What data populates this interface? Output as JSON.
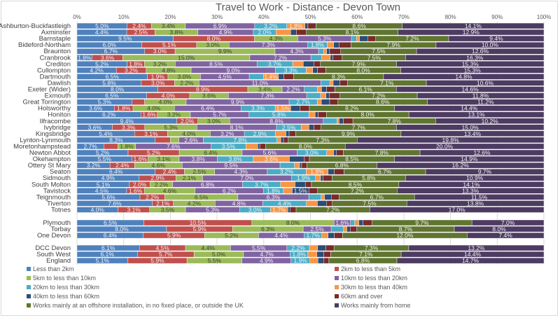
{
  "chart_data": {
    "type": "bar",
    "orientation": "horizontal",
    "stacked": "100%",
    "title": "Travel to Work - Distance - Devon Town",
    "xlabel": "",
    "ylabel": "",
    "xlim": [
      0,
      100
    ],
    "x_ticks": [
      "0%",
      "10%",
      "20%",
      "30%",
      "40%",
      "50%",
      "60%",
      "70%",
      "80%",
      "90%",
      "100%"
    ],
    "grid": true,
    "legend_position": "bottom",
    "series": [
      {
        "name": "Less than 2km",
        "color": "#4f81bd"
      },
      {
        "name": "2km to less than 5km",
        "color": "#c0504d"
      },
      {
        "name": "5km to less than 10km",
        "color": "#9bbb59"
      },
      {
        "name": "10km to less than 20km",
        "color": "#8064a2"
      },
      {
        "name": "20km to less than 30km",
        "color": "#4bacc6"
      },
      {
        "name": "30km to less than 40km",
        "color": "#f79646"
      },
      {
        "name": "40km to less than 60km",
        "color": "#2c4d75"
      },
      {
        "name": "60km and over",
        "color": "#772c2a"
      },
      {
        "name": "Works mainly at an offshore installation, in no fixed place, or outside the UK",
        "color": "#5f7530"
      },
      {
        "name": "Works mainly from home",
        "color": "#4d3b62"
      }
    ],
    "groups": [
      {
        "rows": [
          {
            "category": "Ashburton-Buckfastleigh",
            "values": [
              5.0,
              2.4,
              3.4,
              6.9,
              3.2,
              1.8,
              0.3,
              0.8,
              8.6,
              14.1
            ]
          },
          {
            "category": "Axminster",
            "values": [
              4.4,
              2.5,
              3.8,
              4.9,
              2.0,
              1.3,
              0.5,
              0.9,
              8.1,
              12.9
            ]
          },
          {
            "category": "Barnstaple",
            "values": [
              9.5,
              8.0,
              4.3,
              5.3,
              0.5,
              0.3,
              0.8,
              0.8,
              7.2,
              9.4
            ]
          },
          {
            "category": "Bideford-Northam",
            "values": [
              6.0,
              5.1,
              3.0,
              7.3,
              1.8,
              0.6,
              0.5,
              1.1,
              7.9,
              10.0
            ]
          },
          {
            "category": "Braunton",
            "values": [
              6.7,
              3.0,
              9.9,
              4.3,
              0.5,
              0.3,
              0.3,
              1.1,
              7.5,
              12.6
            ]
          },
          {
            "category": "Cranbrook",
            "values": [
              1.8,
              3.6,
              15.0,
              7.2,
              1.3,
              1.0,
              0.3,
              1.1,
              7.5,
              16.3
            ]
          },
          {
            "category": "Crediton",
            "values": [
              5.2,
              1.8,
              3.2,
              8.5,
              3.7,
              1.1,
              1.1,
              0.7,
              7.9,
              15.3
            ]
          },
          {
            "category": "Cullompton",
            "values": [
              4.2,
              3.2,
              4.8,
              9.0,
              3.3,
              0.7,
              0.5,
              0.9,
              8.0,
              15.3
            ]
          },
          {
            "category": "Dartmouth",
            "values": [
              6.5,
              1.9,
              3.0,
              4.5,
              1.3,
              1.4,
              0.5,
              0.9,
              8.3,
              14.8
            ]
          },
          {
            "category": "Dawlish",
            "values": [
              5.8,
              3.0,
              2.2,
              11.0,
              0.8,
              0.3,
              0.6,
              0.7,
              7.1,
              10.6
            ]
          },
          {
            "category": "Exeter (Wider)",
            "values": [
              8.0,
              8.9,
              3.4,
              2.2,
              1.3,
              0.4,
              0.5,
              0.8,
              6.1,
              14.6
            ]
          },
          {
            "category": "Exmouth",
            "values": [
              6.5,
              4.0,
              3.6,
              7.3,
              1.3,
              0.5,
              0.3,
              1.0,
              7.2,
              11.8
            ]
          },
          {
            "category": "Great Torrington",
            "values": [
              5.3,
              1.2,
              4.0,
              9.9,
              2.7,
              0.4,
              0.8,
              0.8,
              8.6,
              11.2
            ]
          },
          {
            "category": "Holsworthy",
            "values": [
              3.6,
              1.8,
              4.0,
              6.4,
              3.3,
              1.5,
              0.9,
              0.9,
              8.2,
              14.4
            ]
          },
          {
            "category": "Honiton",
            "values": [
              6.2,
              1.6,
              3.2,
              5.7,
              5.8,
              0.6,
              0.3,
              0.8,
              8.0,
              13.1
            ]
          },
          {
            "category": "Ilfracombe",
            "values": [
              9.4,
              2.0,
              3.0,
              8.8,
              1.3,
              0.2,
              0.4,
              0.9,
              7.8,
              10.2
            ]
          },
          {
            "category": "Ivybridge",
            "values": [
              3.6,
              3.3,
              5.3,
              8.1,
              2.5,
              0.8,
              0.5,
              0.7,
              7.7,
              15.0
            ]
          },
          {
            "category": "Kingsbridge",
            "values": [
              5.4,
              3.1,
              4.0,
              3.2,
              2.9,
              1.0,
              0.3,
              0.6,
              9.9,
              13.4
            ]
          },
          {
            "category": "Lynton-Lynmouth",
            "values": [
              8.3,
              1.6,
              0.9,
              2.6,
              7.8,
              0.4,
              0.3,
              0.5,
              7.3,
              19.8
            ]
          },
          {
            "category": "Moretonhampstead",
            "values": [
              2.7,
              1.4,
              1.8,
              7.6,
              3.5,
              1.2,
              0.2,
              0.6,
              8.0,
              20.0
            ]
          },
          {
            "category": "Newton Abbot",
            "values": [
              5.2,
              5.2,
              6.4,
              5.6,
              3.0,
              0.7,
              0.3,
              0.7,
              7.8,
              12.6
            ]
          },
          {
            "category": "Okehampton",
            "values": [
              5.5,
              1.6,
              3.1,
              3.8,
              3.6,
              3.6,
              1.5,
              0.5,
              8.5,
              14.9
            ]
          },
          {
            "category": "Ottery St Mary",
            "values": [
              3.2,
              2.4,
              4.6,
              9.5,
              1.4,
              0.5,
              0.2,
              0.5,
              6.8,
              16.2
            ]
          },
          {
            "category": "Seaton",
            "values": [
              6.4,
              2.4,
              2.5,
              4.3,
              3.2,
              1.8,
              0.5,
              0.8,
              6.7,
              9.7
            ]
          },
          {
            "category": "Sidmouth",
            "values": [
              4.9,
              2.9,
              2.1,
              7.0,
              1.9,
              0.4,
              0.2,
              0.7,
              5.8,
              10.9
            ]
          },
          {
            "category": "South Molton",
            "values": [
              5.1,
              2.0,
              2.2,
              6.8,
              3.7,
              1.4,
              1.0,
              0.6,
              8.5,
              14.1
            ]
          },
          {
            "category": "Tavistock",
            "values": [
              4.5,
              1.6,
              4.6,
              6.2,
              1.8,
              0.8,
              1.5,
              0.8,
              7.2,
              13.3
            ]
          },
          {
            "category": "Teignmouth",
            "values": [
              5.6,
              2.2,
              6.5,
              6.3,
              1.1,
              0.3,
              0.6,
              0.7,
              6.7,
              11.5
            ]
          },
          {
            "category": "Tiverton",
            "values": [
              7.6,
              2.1,
              4.2,
              4.8,
              4.4,
              1.1,
              0.9,
              0.6,
              7.5,
              13.8
            ]
          },
          {
            "category": "Totnes",
            "values": [
              4.0,
              3.1,
              3.5,
              5.3,
              3.0,
              1.7,
              0.2,
              0.6,
              7.2,
              17.0
            ]
          }
        ]
      },
      {
        "rows": [
          {
            "category": "Plymouth",
            "values": [
              6.5,
              10.5,
              8.0,
              1.6,
              0.4,
              0.4,
              0.4,
              0.9,
              9.7,
              7.0
            ]
          },
          {
            "category": "Torbay",
            "values": [
              8.0,
              5.9,
              6.3,
              2.5,
              1.1,
              0.3,
              0.3,
              0.6,
              8.7,
              8.0
            ]
          },
          {
            "category": "One Devon",
            "values": [
              6.4,
              5.9,
              5.2,
              4.4,
              1.7,
              0.6,
              0.6,
              0.8,
              12.0,
              7.4
            ]
          }
        ]
      },
      {
        "rows": [
          {
            "category": "DCC Devon",
            "values": [
              6.1,
              4.5,
              4.4,
              5.5,
              2.2,
              0.8,
              0.8,
              0.8,
              7.3,
              13.2
            ]
          },
          {
            "category": "South West",
            "values": [
              6.1,
              5.7,
              5.0,
              4.7,
              1.8,
              0.9,
              0.7,
              0.7,
              7.1,
              14.4
            ]
          },
          {
            "category": "England",
            "values": [
              5.1,
              5.9,
              5.5,
              4.9,
              1.9,
              0.8,
              0.6,
              0.5,
              6.8,
              14.7
            ]
          }
        ]
      }
    ]
  }
}
